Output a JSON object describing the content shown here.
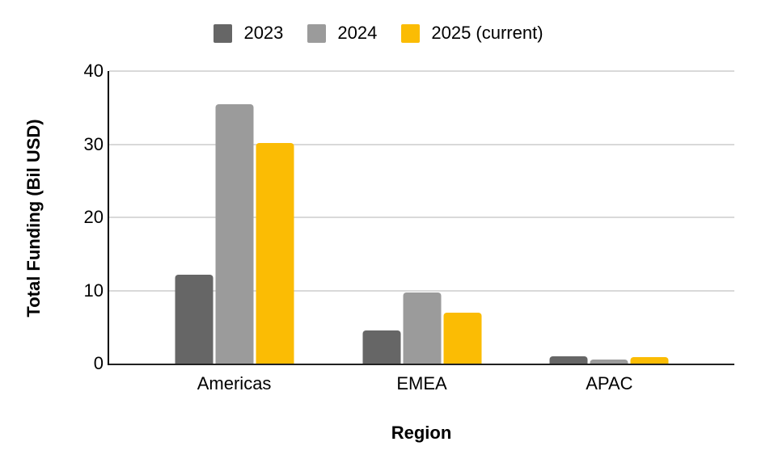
{
  "chart_data": {
    "type": "bar",
    "title": "",
    "xlabel": "Region",
    "ylabel": "Total Funding (Bil USD)",
    "categories": [
      "Americas",
      "EMEA",
      "APAC"
    ],
    "series": [
      {
        "name": "2023",
        "color": "#666666",
        "values": [
          12.2,
          4.5,
          1.0
        ]
      },
      {
        "name": "2024",
        "color": "#9b9b9b",
        "values": [
          35.5,
          9.7,
          0.5
        ]
      },
      {
        "name": "2025 (current)",
        "color": "#fbbc04",
        "values": [
          30.2,
          7.0,
          0.9
        ]
      }
    ],
    "ylim": [
      0,
      40
    ],
    "yticks": [
      0,
      10,
      20,
      30,
      40
    ],
    "grid": true,
    "grid_color": "#d9d9d9",
    "axis_color": "#212121",
    "legend_position": "top",
    "group_center_percents": [
      20,
      50,
      80
    ]
  }
}
